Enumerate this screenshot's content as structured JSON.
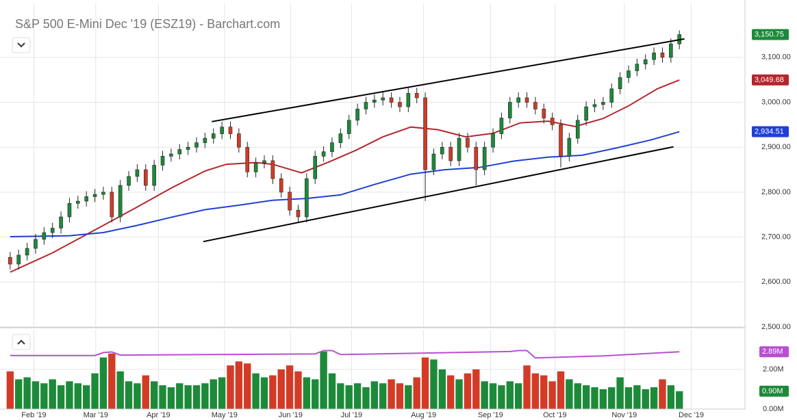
{
  "chart_data": {
    "type": "candlestick",
    "title": "S&P 500 E-Mini Dec '19 (ESZ19) - Barchart.com",
    "up_color": "#1d8a3a",
    "down_color": "#d23b26",
    "wick_color": "#222222",
    "grid": true,
    "xlim": [
      -1.2,
      86.5
    ],
    "xticks": [
      {
        "value": 2.8,
        "label": "Feb '19"
      },
      {
        "value": 10.1,
        "label": "Mar '19"
      },
      {
        "value": 17.5,
        "label": "Apr '19"
      },
      {
        "value": 25.3,
        "label": "May '19"
      },
      {
        "value": 33.1,
        "label": "Jun '19"
      },
      {
        "value": 40.3,
        "label": "Jul '19"
      },
      {
        "value": 48.8,
        "label": "Aug '19"
      },
      {
        "value": 56.7,
        "label": "Sep '19"
      },
      {
        "value": 64.3,
        "label": "Oct '19"
      },
      {
        "value": 72.5,
        "label": "Nov '19"
      },
      {
        "value": 80.4,
        "label": "Dec '19"
      }
    ],
    "ylim": [
      2500,
      3220
    ],
    "yticks": [
      {
        "value": 2500,
        "label": "2,500.00"
      },
      {
        "value": 2600,
        "label": "2,600.00"
      },
      {
        "value": 2700,
        "label": "2,700.00"
      },
      {
        "value": 2800,
        "label": "2,800.00"
      },
      {
        "value": 2900,
        "label": "2,900.00"
      },
      {
        "value": 3000,
        "label": "3,000.00"
      },
      {
        "value": 3100,
        "label": "3,100.00"
      }
    ],
    "open": [
      2655,
      2640,
      2660,
      2675,
      2695,
      2710,
      2720,
      2745,
      2775,
      2780,
      2790,
      2795,
      2800,
      2745,
      2815,
      2835,
      2850,
      2815,
      2860,
      2880,
      2885,
      2895,
      2900,
      2910,
      2920,
      2930,
      2945,
      2930,
      2900,
      2845,
      2865,
      2870,
      2830,
      2800,
      2760,
      2745,
      2830,
      2880,
      2890,
      2910,
      2930,
      2960,
      2985,
      3000,
      3005,
      3010,
      3000,
      2990,
      3020,
      3010,
      2850,
      2885,
      2900,
      2870,
      2920,
      2900,
      2850,
      2900,
      2930,
      2965,
      3000,
      3010,
      3000,
      2985,
      2965,
      2950,
      2880,
      2920,
      2960,
      2990,
      2995,
      3000,
      3030,
      3055,
      3070,
      3085,
      3095,
      3110,
      3100,
      3130
    ],
    "high": [
      2667,
      2672,
      2687,
      2707,
      2722,
      2732,
      2757,
      2787,
      2792,
      2802,
      2807,
      2812,
      2812,
      2827,
      2847,
      2862,
      2862,
      2872,
      2892,
      2897,
      2907,
      2912,
      2922,
      2932,
      2942,
      2957,
      2957,
      2942,
      2912,
      2877,
      2882,
      2882,
      2842,
      2812,
      2772,
      2842,
      2892,
      2902,
      2922,
      2942,
      2972,
      2997,
      3012,
      3017,
      3022,
      3022,
      3012,
      3032,
      3032,
      3022,
      2897,
      2912,
      2912,
      2932,
      2932,
      2912,
      2912,
      2942,
      2977,
      3012,
      3022,
      3022,
      3012,
      2997,
      2977,
      2962,
      2932,
      2972,
      3002,
      3007,
      3012,
      3042,
      3067,
      3082,
      3097,
      3107,
      3122,
      3122,
      3142,
      3160
    ],
    "low": [
      2628,
      2628,
      2648,
      2663,
      2683,
      2698,
      2708,
      2733,
      2763,
      2768,
      2778,
      2783,
      2733,
      2733,
      2803,
      2823,
      2803,
      2803,
      2848,
      2868,
      2873,
      2883,
      2888,
      2898,
      2908,
      2918,
      2918,
      2888,
      2833,
      2833,
      2853,
      2818,
      2788,
      2748,
      2733,
      2733,
      2818,
      2868,
      2878,
      2898,
      2918,
      2948,
      2973,
      2988,
      2993,
      2988,
      2978,
      2978,
      2998,
      2780,
      2838,
      2873,
      2858,
      2858,
      2888,
      2815,
      2838,
      2888,
      2918,
      2953,
      2988,
      2988,
      2973,
      2953,
      2938,
      2855,
      2868,
      2908,
      2948,
      2978,
      2983,
      2988,
      3018,
      3043,
      3058,
      3073,
      3083,
      3088,
      3088,
      3118
    ],
    "close": [
      2640,
      2660,
      2675,
      2695,
      2710,
      2720,
      2745,
      2775,
      2780,
      2790,
      2795,
      2800,
      2745,
      2815,
      2835,
      2850,
      2815,
      2860,
      2880,
      2885,
      2895,
      2900,
      2910,
      2920,
      2930,
      2945,
      2930,
      2900,
      2845,
      2865,
      2870,
      2830,
      2800,
      2760,
      2745,
      2830,
      2880,
      2890,
      2910,
      2930,
      2960,
      2985,
      3000,
      3005,
      3010,
      3000,
      2990,
      3020,
      3010,
      2850,
      2885,
      2900,
      2870,
      2920,
      2900,
      2850,
      2900,
      2930,
      2965,
      3000,
      3010,
      3000,
      2985,
      2965,
      2950,
      2880,
      2920,
      2960,
      2990,
      2995,
      3000,
      3030,
      3055,
      3070,
      3085,
      3095,
      3110,
      3100,
      3130,
      3150.75
    ],
    "close_last_label": "3,150.75",
    "series": [
      {
        "color": "#b3262c",
        "last_label": "3,049.68",
        "x": [
          0,
          5,
          11,
          15,
          19,
          23,
          25.5,
          29,
          31,
          34.4,
          37.6,
          40.8,
          44,
          47.3,
          50.5,
          53.8,
          57,
          60.2,
          63.5,
          66.7,
          70,
          73,
          76.4,
          79
        ],
        "values": [
          2622,
          2665,
          2726,
          2767,
          2809,
          2847,
          2862,
          2866,
          2862,
          2843,
          2867,
          2893,
          2923,
          2945,
          2939,
          2923,
          2931,
          2954,
          2958,
          2946,
          2964,
          2992,
          3030,
          3049.68
        ]
      },
      {
        "color": "#1f3fd6",
        "last_label": "2,934.51",
        "x": [
          0,
          7,
          11,
          15,
          19,
          23,
          27,
          31,
          35,
          39,
          43,
          47.3,
          51.3,
          55.4,
          59.4,
          63.5,
          67.5,
          71.5,
          75.6,
          79
        ],
        "values": [
          2701,
          2703,
          2710,
          2726,
          2744,
          2761,
          2771,
          2782,
          2786,
          2794,
          2817,
          2840,
          2850,
          2855,
          2869,
          2878,
          2882,
          2898,
          2916,
          2934.51
        ]
      }
    ],
    "trend_lines": [
      {
        "x": [
          23.8,
          79.6
        ],
        "values": [
          2957,
          3141
        ]
      },
      {
        "x": [
          22.8,
          78.3
        ],
        "values": [
          2690,
          2901
        ]
      }
    ],
    "volume": [
      1.9,
      1.5,
      1.6,
      1.4,
      1.3,
      1.5,
      1.2,
      1.4,
      1.3,
      1.2,
      1.8,
      2.6,
      2.8,
      1.9,
      1.4,
      1.3,
      1.7,
      1.4,
      1.2,
      1.1,
      1.3,
      1.2,
      1.2,
      1.3,
      1.5,
      1.6,
      2.2,
      2.4,
      2.3,
      1.8,
      1.6,
      1.7,
      2.0,
      2.2,
      1.9,
      1.6,
      1.5,
      2.9,
      1.8,
      1.3,
      1.2,
      1.3,
      1.1,
      1.4,
      1.3,
      1.5,
      1.3,
      1.2,
      1.6,
      2.6,
      2.5,
      2.0,
      1.7,
      1.5,
      1.8,
      2.0,
      1.4,
      1.3,
      1.2,
      1.4,
      1.3,
      2.2,
      1.8,
      1.7,
      1.4,
      1.9,
      1.5,
      1.3,
      1.2,
      1.1,
      1.0,
      1.1,
      1.6,
      1.1,
      1.2,
      1.0,
      1.1,
      1.5,
      1.2,
      0.9
    ],
    "volume_last_label": "0.90M",
    "volume_ylim": [
      0,
      4
    ],
    "volume_yticks": [
      {
        "value": 0,
        "label": "0.00M"
      },
      {
        "value": 2,
        "label": "2.00M"
      }
    ],
    "volume_series": [
      {
        "color": "#b84fd0",
        "last_label": "2.89M",
        "x": [
          0,
          10,
          11,
          12,
          13,
          36,
          37,
          38,
          39,
          59,
          60,
          61,
          62,
          70,
          79
        ],
        "values": [
          2.7,
          2.7,
          2.85,
          2.88,
          2.72,
          2.78,
          2.95,
          2.95,
          2.75,
          2.9,
          2.95,
          2.95,
          2.58,
          2.68,
          2.89
        ]
      }
    ]
  }
}
